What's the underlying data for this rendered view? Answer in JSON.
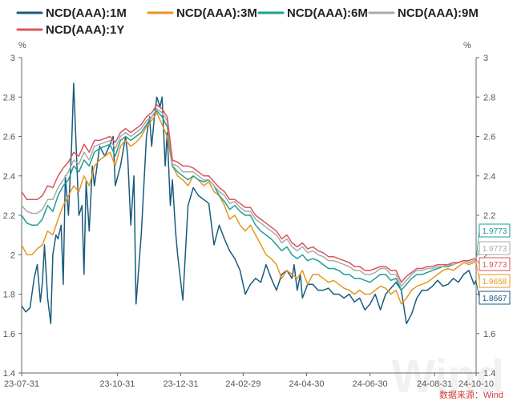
{
  "chart_data": {
    "type": "line",
    "ylim": [
      1.4,
      3.0
    ],
    "y_ticks": [
      "1.4",
      "1.6",
      "1.8",
      "2",
      "2.2",
      "2.4",
      "2.6",
      "2.8",
      "3"
    ],
    "y_unit_left": "%",
    "y_unit_right": "%",
    "x_labels": [
      "23-07-31",
      "23-10-31",
      "23-12-31",
      "24-02-29",
      "24-04-30",
      "24-06-30",
      "24-08-31",
      "24-10-10"
    ],
    "x_label_positions": [
      0,
      92,
      153,
      213,
      274,
      335,
      397,
      437
    ],
    "x_range": [
      0,
      437
    ],
    "legend_position": "top",
    "grid": false,
    "source": "数据来源：Wind",
    "watermark": "Wind",
    "end_labels": [
      {
        "text": "1.9773",
        "series": 2,
        "color": "#1e9e95",
        "value": 1.9773
      },
      {
        "text": "1.9773",
        "series": 3,
        "color": "#aaaaaa",
        "value": 1.9773
      },
      {
        "text": "1.9773",
        "series": 4,
        "color": "#d9555d",
        "value": 1.9773
      },
      {
        "text": "1.9658",
        "series": 1,
        "color": "#e8961e",
        "value": 1.9658
      },
      {
        "text": "1.8667",
        "series": 0,
        "color": "#1a5b7e",
        "value": 1.8667
      }
    ],
    "series": [
      {
        "name": "NCD(AAA):1M",
        "color": "#1a5b7e",
        "x": [
          0,
          4,
          8,
          12,
          15,
          18,
          20,
          22,
          25,
          28,
          30,
          33,
          35,
          38,
          40,
          42,
          45,
          48,
          50,
          55,
          58,
          60,
          62,
          65,
          68,
          70,
          75,
          80,
          85,
          88,
          90,
          95,
          100,
          102,
          105,
          108,
          110,
          115,
          120,
          123,
          125,
          128,
          130,
          133,
          135,
          138,
          140,
          143,
          145,
          148,
          150,
          155,
          160,
          165,
          170,
          175,
          180,
          185,
          190,
          195,
          200,
          205,
          210,
          215,
          220,
          225,
          230,
          235,
          240,
          245,
          250,
          255,
          260,
          262,
          265,
          268,
          270,
          275,
          280,
          285,
          290,
          295,
          300,
          305,
          310,
          315,
          320,
          325,
          330,
          335,
          340,
          345,
          350,
          355,
          360,
          365,
          370,
          375,
          380,
          385,
          390,
          395,
          400,
          405,
          410,
          415,
          420,
          425,
          430,
          435,
          437
        ],
        "y": [
          1.74,
          1.71,
          1.73,
          1.88,
          1.95,
          1.76,
          1.86,
          2.05,
          1.78,
          1.65,
          2.0,
          2.1,
          2.08,
          2.15,
          1.85,
          2.4,
          2.2,
          2.55,
          2.87,
          2.2,
          2.25,
          1.9,
          2.37,
          2.12,
          2.45,
          2.35,
          2.55,
          2.5,
          2.56,
          2.6,
          2.35,
          2.45,
          2.6,
          2.5,
          2.15,
          2.4,
          1.75,
          2.1,
          2.6,
          2.7,
          2.55,
          2.72,
          2.8,
          2.75,
          2.8,
          2.45,
          2.62,
          2.25,
          2.38,
          2.12,
          2.0,
          1.77,
          2.25,
          2.34,
          2.3,
          2.28,
          2.26,
          2.05,
          2.15,
          2.08,
          2.02,
          1.98,
          1.92,
          1.8,
          1.85,
          1.88,
          1.86,
          1.95,
          1.88,
          1.82,
          1.9,
          1.92,
          1.88,
          1.95,
          1.82,
          1.9,
          1.78,
          1.85,
          1.85,
          1.82,
          1.82,
          1.83,
          1.8,
          1.8,
          1.78,
          1.8,
          1.76,
          1.78,
          1.72,
          1.75,
          1.8,
          1.72,
          1.8,
          1.83,
          1.86,
          1.82,
          1.65,
          1.7,
          1.78,
          1.82,
          1.82,
          1.84,
          1.87,
          1.84,
          1.85,
          1.88,
          1.86,
          1.9,
          1.92,
          1.85,
          1.87
        ]
      },
      {
        "name": "NCD(AAA):3M",
        "color": "#e8961e",
        "x": [
          0,
          5,
          10,
          15,
          20,
          25,
          30,
          35,
          40,
          45,
          50,
          55,
          60,
          65,
          70,
          75,
          80,
          85,
          90,
          95,
          100,
          105,
          110,
          115,
          120,
          125,
          130,
          135,
          140,
          145,
          150,
          155,
          160,
          165,
          170,
          175,
          180,
          185,
          190,
          195,
          200,
          205,
          210,
          215,
          220,
          225,
          230,
          235,
          240,
          245,
          250,
          255,
          260,
          265,
          270,
          275,
          280,
          285,
          290,
          295,
          300,
          305,
          310,
          315,
          320,
          325,
          330,
          335,
          340,
          345,
          350,
          355,
          360,
          365,
          370,
          375,
          380,
          385,
          390,
          395,
          400,
          405,
          410,
          415,
          420,
          425,
          430,
          435,
          437
        ],
        "y": [
          2.05,
          2.0,
          2.0,
          2.03,
          2.05,
          2.12,
          2.1,
          2.18,
          2.25,
          2.3,
          2.35,
          2.32,
          2.4,
          2.35,
          2.45,
          2.48,
          2.5,
          2.52,
          2.45,
          2.55,
          2.58,
          2.55,
          2.57,
          2.6,
          2.65,
          2.68,
          2.72,
          2.66,
          2.6,
          2.45,
          2.4,
          2.38,
          2.35,
          2.4,
          2.38,
          2.35,
          2.37,
          2.32,
          2.3,
          2.25,
          2.18,
          2.2,
          2.15,
          2.12,
          2.15,
          2.1,
          2.05,
          2.0,
          1.98,
          1.95,
          1.88,
          1.92,
          1.9,
          1.88,
          1.92,
          1.85,
          1.9,
          1.9,
          1.88,
          1.86,
          1.87,
          1.85,
          1.83,
          1.82,
          1.8,
          1.82,
          1.8,
          1.8,
          1.82,
          1.84,
          1.83,
          1.8,
          1.82,
          1.75,
          1.78,
          1.82,
          1.84,
          1.85,
          1.86,
          1.88,
          1.9,
          1.92,
          1.93,
          1.92,
          1.94,
          1.96,
          1.95,
          1.96,
          1.9658
        ]
      },
      {
        "name": "NCD(AAA):6M",
        "color": "#1e9e95",
        "x": [
          0,
          5,
          10,
          15,
          20,
          25,
          30,
          35,
          40,
          45,
          50,
          55,
          60,
          65,
          70,
          75,
          80,
          85,
          90,
          95,
          100,
          105,
          110,
          115,
          120,
          125,
          130,
          135,
          140,
          145,
          150,
          155,
          160,
          165,
          170,
          175,
          180,
          185,
          190,
          195,
          200,
          205,
          210,
          215,
          220,
          225,
          230,
          235,
          240,
          245,
          250,
          255,
          260,
          265,
          270,
          275,
          280,
          285,
          290,
          295,
          300,
          305,
          310,
          315,
          320,
          325,
          330,
          335,
          340,
          345,
          350,
          355,
          360,
          365,
          370,
          375,
          380,
          385,
          390,
          395,
          400,
          405,
          410,
          415,
          420,
          425,
          430,
          435,
          437
        ],
        "y": [
          2.2,
          2.16,
          2.15,
          2.15,
          2.18,
          2.25,
          2.22,
          2.3,
          2.35,
          2.38,
          2.45,
          2.42,
          2.48,
          2.45,
          2.52,
          2.54,
          2.55,
          2.56,
          2.5,
          2.58,
          2.6,
          2.58,
          2.6,
          2.62,
          2.66,
          2.7,
          2.73,
          2.7,
          2.65,
          2.45,
          2.42,
          2.4,
          2.38,
          2.4,
          2.38,
          2.37,
          2.38,
          2.35,
          2.3,
          2.27,
          2.23,
          2.25,
          2.22,
          2.2,
          2.2,
          2.15,
          2.12,
          2.1,
          2.08,
          2.05,
          2.02,
          2.04,
          2.0,
          1.98,
          2.0,
          1.97,
          1.98,
          1.97,
          1.95,
          1.93,
          1.93,
          1.92,
          1.9,
          1.9,
          1.88,
          1.88,
          1.87,
          1.86,
          1.88,
          1.9,
          1.9,
          1.87,
          1.88,
          1.82,
          1.85,
          1.88,
          1.9,
          1.9,
          1.91,
          1.92,
          1.93,
          1.94,
          1.94,
          1.95,
          1.96,
          1.97,
          1.96,
          1.97,
          1.9773
        ]
      },
      {
        "name": "NCD(AAA):9M",
        "color": "#aaaaaa",
        "x": [
          0,
          5,
          10,
          15,
          20,
          25,
          30,
          35,
          40,
          45,
          50,
          55,
          60,
          65,
          70,
          75,
          80,
          85,
          90,
          95,
          100,
          105,
          110,
          115,
          120,
          125,
          130,
          135,
          140,
          145,
          150,
          155,
          160,
          165,
          170,
          175,
          180,
          185,
          190,
          195,
          200,
          205,
          210,
          215,
          220,
          225,
          230,
          235,
          240,
          245,
          250,
          255,
          260,
          265,
          270,
          275,
          280,
          285,
          290,
          295,
          300,
          305,
          310,
          315,
          320,
          325,
          330,
          335,
          340,
          345,
          350,
          355,
          360,
          365,
          370,
          375,
          380,
          385,
          390,
          395,
          400,
          405,
          410,
          415,
          420,
          425,
          430,
          435,
          437
        ],
        "y": [
          2.25,
          2.22,
          2.21,
          2.21,
          2.23,
          2.28,
          2.28,
          2.34,
          2.38,
          2.42,
          2.48,
          2.46,
          2.52,
          2.48,
          2.55,
          2.56,
          2.57,
          2.58,
          2.54,
          2.6,
          2.62,
          2.6,
          2.62,
          2.64,
          2.68,
          2.7,
          2.74,
          2.72,
          2.68,
          2.46,
          2.45,
          2.42,
          2.42,
          2.42,
          2.4,
          2.38,
          2.38,
          2.35,
          2.32,
          2.3,
          2.26,
          2.27,
          2.24,
          2.22,
          2.22,
          2.18,
          2.16,
          2.14,
          2.12,
          2.1,
          2.06,
          2.08,
          2.04,
          2.02,
          2.04,
          2.01,
          2.02,
          2.0,
          1.99,
          1.97,
          1.97,
          1.96,
          1.95,
          1.94,
          1.92,
          1.92,
          1.9,
          1.9,
          1.91,
          1.93,
          1.93,
          1.9,
          1.9,
          1.84,
          1.87,
          1.9,
          1.92,
          1.92,
          1.93,
          1.93,
          1.94,
          1.94,
          1.95,
          1.95,
          1.96,
          1.97,
          1.96,
          1.97,
          1.9773
        ]
      },
      {
        "name": "NCD(AAA):1Y",
        "color": "#d9555d",
        "x": [
          0,
          5,
          10,
          15,
          20,
          25,
          30,
          35,
          40,
          45,
          50,
          55,
          60,
          65,
          70,
          75,
          80,
          85,
          90,
          95,
          100,
          105,
          110,
          115,
          120,
          125,
          130,
          135,
          140,
          145,
          150,
          155,
          160,
          165,
          170,
          175,
          180,
          185,
          190,
          195,
          200,
          205,
          210,
          215,
          220,
          225,
          230,
          235,
          240,
          245,
          250,
          255,
          260,
          265,
          270,
          275,
          280,
          285,
          290,
          295,
          300,
          305,
          310,
          315,
          320,
          325,
          330,
          335,
          340,
          345,
          350,
          355,
          360,
          365,
          370,
          375,
          380,
          385,
          390,
          395,
          400,
          405,
          410,
          415,
          420,
          425,
          430,
          435,
          437
        ],
        "y": [
          2.32,
          2.28,
          2.28,
          2.28,
          2.3,
          2.35,
          2.34,
          2.4,
          2.44,
          2.47,
          2.52,
          2.5,
          2.56,
          2.52,
          2.58,
          2.58,
          2.59,
          2.6,
          2.57,
          2.62,
          2.64,
          2.62,
          2.64,
          2.66,
          2.7,
          2.72,
          2.76,
          2.74,
          2.7,
          2.48,
          2.47,
          2.45,
          2.45,
          2.44,
          2.42,
          2.4,
          2.4,
          2.37,
          2.34,
          2.32,
          2.28,
          2.28,
          2.26,
          2.24,
          2.24,
          2.2,
          2.18,
          2.16,
          2.14,
          2.12,
          2.08,
          2.1,
          2.06,
          2.04,
          2.06,
          2.03,
          2.04,
          2.02,
          2.01,
          1.99,
          1.99,
          1.98,
          1.97,
          1.96,
          1.94,
          1.94,
          1.92,
          1.92,
          1.93,
          1.94,
          1.94,
          1.92,
          1.92,
          1.86,
          1.89,
          1.91,
          1.93,
          1.93,
          1.94,
          1.94,
          1.95,
          1.95,
          1.95,
          1.96,
          1.96,
          1.97,
          1.97,
          1.98,
          1.9773
        ]
      }
    ]
  }
}
